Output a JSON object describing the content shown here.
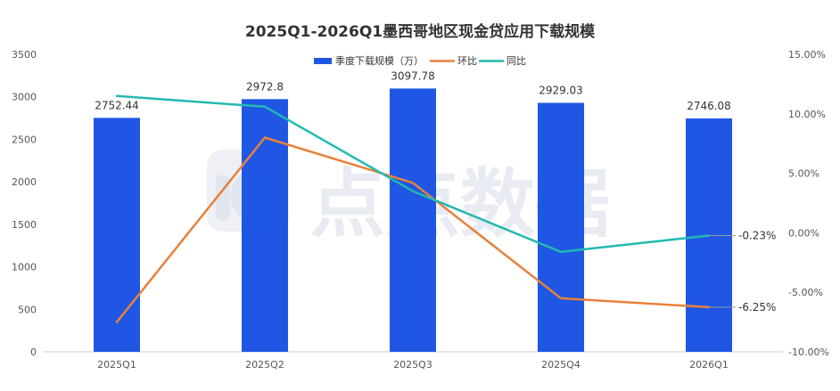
{
  "colors": {
    "bar": "#1F57E4",
    "qoq": "#E8813A",
    "yoy": "#22B9B1",
    "axis": "#cccccc",
    "text": "#333333"
  },
  "watermark": {
    "text": "点点数据",
    "icon": "diandian-logo-icon"
  },
  "chart_data": {
    "type": "bar",
    "title": "2025Q1-2026Q1墨西哥地区现金贷应用下载规模",
    "categories": [
      "2025Q1",
      "2025Q2",
      "2025Q3",
      "2025Q4",
      "2026Q1"
    ],
    "series": [
      {
        "name": "季度下载规模（万）",
        "type": "bar",
        "axis": "left",
        "values": [
          2752.44,
          2972.8,
          3097.78,
          2929.03,
          2746.08
        ],
        "labels": [
          "2752.44",
          "2972.8",
          "3097.78",
          "2929.03",
          "2746.08"
        ]
      },
      {
        "name": "环比",
        "type": "line",
        "axis": "right",
        "values": [
          -0.075,
          0.08,
          0.042,
          -0.055,
          -0.0625
        ],
        "end_label": "-6.25%"
      },
      {
        "name": "同比",
        "type": "line",
        "axis": "right",
        "values": [
          0.115,
          0.106,
          0.035,
          -0.016,
          -0.0023
        ],
        "end_label": "-0.23%"
      }
    ],
    "y_left": {
      "min": 0,
      "max": 3500,
      "ticks": [
        "0",
        "500",
        "1000",
        "1500",
        "2000",
        "2500",
        "3000",
        "3500"
      ]
    },
    "y_right": {
      "min": -0.1,
      "max": 0.15,
      "ticks": [
        "-10.00%",
        "-5.00%",
        "0.00%",
        "5.00%",
        "10.00%",
        "15.00%"
      ]
    },
    "grid": false,
    "legend_position": "top-center"
  }
}
